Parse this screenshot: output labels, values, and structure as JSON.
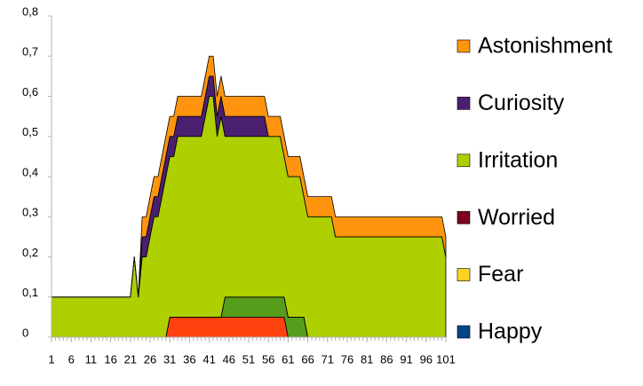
{
  "chart_data": {
    "type": "stacked_area",
    "x": [
      1,
      2,
      3,
      4,
      5,
      6,
      7,
      8,
      9,
      10,
      11,
      12,
      13,
      14,
      15,
      16,
      17,
      18,
      19,
      20,
      21,
      22,
      23,
      24,
      25,
      26,
      27,
      28,
      29,
      30,
      31,
      32,
      33,
      34,
      35,
      36,
      37,
      38,
      39,
      40,
      41,
      42,
      43,
      44,
      45,
      46,
      47,
      48,
      49,
      50,
      51,
      52,
      53,
      54,
      55,
      56,
      57,
      58,
      59,
      60,
      61,
      62,
      63,
      64,
      65,
      66,
      67,
      68,
      69,
      70,
      71,
      72,
      73,
      74,
      75,
      76,
      77,
      78,
      79,
      80,
      81,
      82,
      83,
      84,
      85,
      86,
      87,
      88,
      89,
      90,
      91,
      92,
      93,
      94,
      95,
      96,
      97,
      98,
      99,
      100,
      101
    ],
    "xlim": [
      1,
      101
    ],
    "xticks": [
      1,
      6,
      11,
      16,
      21,
      26,
      31,
      36,
      41,
      46,
      51,
      56,
      61,
      66,
      71,
      76,
      81,
      86,
      91,
      96,
      101
    ],
    "ylim": [
      0,
      0.8
    ],
    "yticks": [
      0,
      {
        "value": 0.1,
        "label": "0,1"
      },
      {
        "value": 0.2,
        "label": "0,2"
      },
      {
        "value": 0.3,
        "label": "0,3"
      },
      {
        "value": 0.4,
        "label": "0,4"
      },
      {
        "value": 0.5,
        "label": "0,5"
      },
      {
        "value": 0.6,
        "label": "0,6"
      },
      {
        "value": 0.7,
        "label": "0,7"
      },
      {
        "value": 0.8,
        "label": "0,8"
      }
    ],
    "legend": "right",
    "series": [
      {
        "color": "#ff420e",
        "values": [
          0,
          0,
          0,
          0,
          0,
          0,
          0,
          0,
          0,
          0,
          0,
          0,
          0,
          0,
          0,
          0,
          0,
          0,
          0,
          0,
          0,
          0,
          0,
          0,
          0,
          0,
          0,
          0,
          0,
          0,
          0.05,
          0.05,
          0.05,
          0.05,
          0.05,
          0.05,
          0.05,
          0.05,
          0.05,
          0.05,
          0.05,
          0.05,
          0.05,
          0.05,
          0.05,
          0.05,
          0.05,
          0.05,
          0.05,
          0.05,
          0.05,
          0.05,
          0.05,
          0.05,
          0.05,
          0.05,
          0.05,
          0.05,
          0.05,
          0.05,
          0,
          0,
          0,
          0,
          0,
          0,
          0,
          0,
          0,
          0,
          0,
          0,
          0,
          0,
          0,
          0,
          0,
          0,
          0,
          0,
          0,
          0,
          0,
          0,
          0,
          0,
          0,
          0,
          0,
          0,
          0,
          0,
          0,
          0,
          0,
          0,
          0,
          0,
          0,
          0,
          0
        ]
      },
      {
        "color": "#579d1c",
        "values": [
          0,
          0,
          0,
          0,
          0,
          0,
          0,
          0,
          0,
          0,
          0,
          0,
          0,
          0,
          0,
          0,
          0,
          0,
          0,
          0,
          0,
          0,
          0,
          0,
          0,
          0,
          0,
          0,
          0,
          0,
          0,
          0,
          0,
          0,
          0,
          0,
          0,
          0,
          0,
          0,
          0,
          0,
          0,
          0,
          0.05,
          0.05,
          0.05,
          0.05,
          0.05,
          0.05,
          0.05,
          0.05,
          0.05,
          0.05,
          0.05,
          0.05,
          0.05,
          0.05,
          0.05,
          0.05,
          0.05,
          0.05,
          0.05,
          0.05,
          0.05,
          0,
          0,
          0,
          0,
          0,
          0,
          0,
          0,
          0,
          0,
          0,
          0,
          0,
          0,
          0,
          0,
          0,
          0,
          0,
          0,
          0,
          0,
          0,
          0,
          0,
          0,
          0,
          0,
          0,
          0,
          0,
          0,
          0,
          0,
          0,
          0
        ]
      },
      {
        "name": "Happy",
        "color": "#004586",
        "values": [
          0,
          0,
          0,
          0,
          0,
          0,
          0,
          0,
          0,
          0,
          0,
          0,
          0,
          0,
          0,
          0,
          0,
          0,
          0,
          0,
          0,
          0,
          0,
          0,
          0,
          0,
          0,
          0,
          0,
          0,
          0,
          0,
          0,
          0,
          0,
          0,
          0,
          0,
          0,
          0,
          0,
          0,
          0,
          0,
          0,
          0,
          0,
          0,
          0,
          0,
          0,
          0,
          0,
          0,
          0,
          0,
          0,
          0,
          0,
          0,
          0,
          0,
          0,
          0,
          0,
          0,
          0,
          0,
          0,
          0,
          0,
          0,
          0,
          0,
          0,
          0,
          0,
          0,
          0,
          0,
          0,
          0,
          0,
          0,
          0,
          0,
          0,
          0,
          0,
          0,
          0,
          0,
          0,
          0,
          0,
          0,
          0,
          0,
          0,
          0,
          0
        ]
      },
      {
        "name": "Fear",
        "color": "#ffd320",
        "values": [
          0,
          0,
          0,
          0,
          0,
          0,
          0,
          0,
          0,
          0,
          0,
          0,
          0,
          0,
          0,
          0,
          0,
          0,
          0,
          0,
          0,
          0,
          0,
          0,
          0,
          0,
          0,
          0,
          0,
          0,
          0,
          0,
          0,
          0,
          0,
          0,
          0,
          0,
          0,
          0,
          0,
          0,
          0,
          0,
          0,
          0,
          0,
          0,
          0,
          0,
          0,
          0,
          0,
          0,
          0,
          0,
          0,
          0,
          0,
          0,
          0,
          0,
          0,
          0,
          0,
          0,
          0,
          0,
          0,
          0,
          0,
          0,
          0,
          0,
          0,
          0,
          0,
          0,
          0,
          0,
          0,
          0,
          0,
          0,
          0,
          0,
          0,
          0,
          0,
          0,
          0,
          0,
          0,
          0,
          0,
          0,
          0,
          0,
          0,
          0,
          0
        ]
      },
      {
        "name": "Worried",
        "color": "#7e0021",
        "values": [
          0,
          0,
          0,
          0,
          0,
          0,
          0,
          0,
          0,
          0,
          0,
          0,
          0,
          0,
          0,
          0,
          0,
          0,
          0,
          0,
          0,
          0,
          0,
          0,
          0,
          0,
          0,
          0,
          0,
          0,
          0,
          0,
          0,
          0,
          0,
          0,
          0,
          0,
          0,
          0,
          0,
          0,
          0,
          0,
          0,
          0,
          0,
          0,
          0,
          0,
          0,
          0,
          0,
          0,
          0,
          0,
          0,
          0,
          0,
          0,
          0,
          0,
          0,
          0,
          0,
          0,
          0,
          0,
          0,
          0,
          0,
          0,
          0,
          0,
          0,
          0,
          0,
          0,
          0,
          0,
          0,
          0,
          0,
          0,
          0,
          0,
          0,
          0,
          0,
          0,
          0,
          0,
          0,
          0,
          0,
          0,
          0,
          0,
          0,
          0,
          0
        ]
      },
      {
        "name": "Irritation",
        "color": "#aecf00",
        "values": [
          0.1,
          0.1,
          0.1,
          0.1,
          0.1,
          0.1,
          0.1,
          0.1,
          0.1,
          0.1,
          0.1,
          0.1,
          0.1,
          0.1,
          0.1,
          0.1,
          0.1,
          0.1,
          0.1,
          0.1,
          0.1,
          0.2,
          0.1,
          0.2,
          0.2,
          0.25,
          0.3,
          0.3,
          0.35,
          0.4,
          0.4,
          0.4,
          0.45,
          0.45,
          0.45,
          0.45,
          0.45,
          0.45,
          0.45,
          0.5,
          0.55,
          0.55,
          0.45,
          0.5,
          0.4,
          0.4,
          0.4,
          0.4,
          0.4,
          0.4,
          0.4,
          0.4,
          0.4,
          0.4,
          0.4,
          0.4,
          0.4,
          0.4,
          0.4,
          0.35,
          0.35,
          0.35,
          0.35,
          0.35,
          0.3,
          0.3,
          0.3,
          0.3,
          0.3,
          0.3,
          0.3,
          0.3,
          0.25,
          0.25,
          0.25,
          0.25,
          0.25,
          0.25,
          0.25,
          0.25,
          0.25,
          0.25,
          0.25,
          0.25,
          0.25,
          0.25,
          0.25,
          0.25,
          0.25,
          0.25,
          0.25,
          0.25,
          0.25,
          0.25,
          0.25,
          0.25,
          0.25,
          0.25,
          0.25,
          0.25,
          0.2
        ]
      },
      {
        "name": "Curiosity",
        "color": "#4b1f6f",
        "values": [
          0,
          0,
          0,
          0,
          0,
          0,
          0,
          0,
          0,
          0,
          0,
          0,
          0,
          0,
          0,
          0,
          0,
          0,
          0,
          0,
          0,
          0,
          0,
          0.05,
          0.05,
          0.05,
          0.05,
          0.05,
          0.05,
          0.05,
          0.05,
          0.05,
          0.05,
          0.05,
          0.05,
          0.05,
          0.05,
          0.05,
          0.05,
          0.05,
          0.05,
          0.05,
          0.05,
          0.05,
          0.05,
          0.05,
          0.05,
          0.05,
          0.05,
          0.05,
          0.05,
          0.05,
          0.05,
          0.05,
          0.05,
          0,
          0,
          0,
          0,
          0,
          0,
          0,
          0,
          0,
          0,
          0,
          0,
          0,
          0,
          0,
          0,
          0,
          0,
          0,
          0,
          0,
          0,
          0,
          0,
          0,
          0,
          0,
          0,
          0,
          0,
          0,
          0,
          0,
          0,
          0,
          0,
          0,
          0,
          0,
          0,
          0,
          0,
          0,
          0,
          0,
          0
        ]
      },
      {
        "name": "Astonishment",
        "color": "#ff950e",
        "values": [
          0,
          0,
          0,
          0,
          0,
          0,
          0,
          0,
          0,
          0,
          0,
          0,
          0,
          0,
          0,
          0,
          0,
          0,
          0,
          0,
          0,
          0,
          0,
          0.05,
          0.05,
          0.05,
          0.05,
          0.05,
          0.05,
          0.05,
          0.05,
          0.05,
          0.05,
          0.05,
          0.05,
          0.05,
          0.05,
          0.05,
          0.05,
          0.05,
          0.05,
          0.05,
          0.05,
          0.05,
          0.05,
          0.05,
          0.05,
          0.05,
          0.05,
          0.05,
          0.05,
          0.05,
          0.05,
          0.05,
          0.05,
          0.05,
          0.05,
          0.05,
          0.05,
          0.05,
          0.05,
          0.05,
          0.05,
          0.05,
          0.05,
          0.05,
          0.05,
          0.05,
          0.05,
          0.05,
          0.05,
          0.05,
          0.05,
          0.05,
          0.05,
          0.05,
          0.05,
          0.05,
          0.05,
          0.05,
          0.05,
          0.05,
          0.05,
          0.05,
          0.05,
          0.05,
          0.05,
          0.05,
          0.05,
          0.05,
          0.05,
          0.05,
          0.05,
          0.05,
          0.05,
          0.05,
          0.05,
          0.05,
          0.05,
          0.05,
          0.05
        ]
      }
    ]
  }
}
